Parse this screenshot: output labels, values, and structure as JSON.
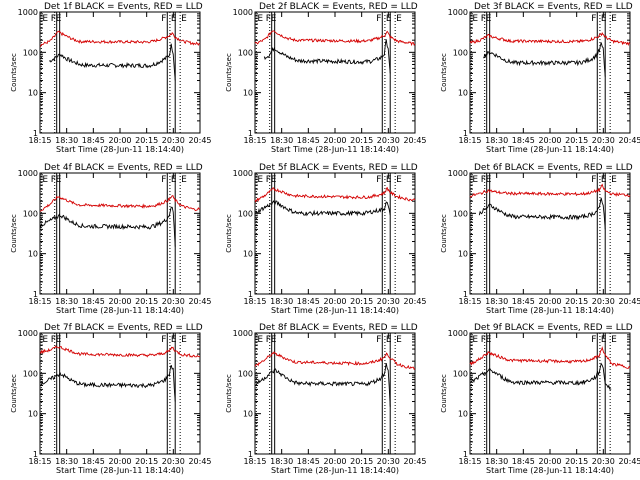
{
  "colors": {
    "events": "#000000",
    "lld": "#d40000",
    "axis": "#000000",
    "background": "#ffffff"
  },
  "chart_data": {
    "type": "line",
    "y_scale": "log",
    "ylim": [
      1,
      1000
    ],
    "y_ticks": [
      1,
      10,
      100,
      1000
    ],
    "y_tick_labels": [
      "1",
      "10",
      "100",
      "1000"
    ],
    "ylabel": "Counts/sec",
    "xlabel": "Start Time (28-Jun-11 18:14:40)",
    "x_range": [
      "18:14:40",
      "20:56:00"
    ],
    "x_tick_labels": [
      "18:15",
      "18:30",
      "18:45",
      "20:00",
      "20:15",
      "20:30",
      "20:45"
    ],
    "markers": {
      "dotted": [
        {
          "time": "18:16:00",
          "label": "E"
        },
        {
          "time": "18:29:30",
          "label": "E"
        },
        {
          "time": "20:25:40",
          "label": "E"
        },
        {
          "time": "20:36:00",
          "label": "E"
        }
      ],
      "solid": [
        {
          "time": "18:31:30",
          "label": "F"
        },
        {
          "time": "18:34:30",
          "label": ""
        },
        {
          "time": "20:23:00",
          "label": "F"
        },
        {
          "time": "20:31:00",
          "label": ""
        }
      ]
    },
    "panels": [
      {
        "title": "Det 1f BLACK = Events, RED = LLD",
        "series": [
          {
            "name": "Events",
            "x": [
              "18:24",
              "18:29",
              "18:35",
              "18:41",
              "18:47",
              "18:53",
              "18:59",
              "20:05",
              "20:11",
              "20:17",
              "20:21",
              "20:25",
              "20:27",
              "20:29",
              "20:31"
            ],
            "y": [
              60,
              70,
              90,
              70,
              60,
              52,
              48,
              47,
              52,
              62,
              70,
              85,
              150,
              100,
              20
            ]
          },
          {
            "name": "LLD",
            "x": [
              "18:14:40",
              "18:25",
              "18:33",
              "18:40",
              "18:48",
              "18:55",
              "20:02",
              "20:10",
              "20:18",
              "20:22",
              "20:25",
              "20:28",
              "20:31",
              "20:38",
              "20:50",
              "20:56"
            ],
            "y": [
              150,
              190,
              320,
              260,
              210,
              185,
              180,
              190,
              220,
              240,
              260,
              300,
              240,
              190,
              165,
              160
            ]
          }
        ]
      },
      {
        "title": "Det 2f BLACK = Events, RED = LLD",
        "series": [
          {
            "name": "Events",
            "x": [
              "18:24",
              "18:29",
              "18:34",
              "18:40",
              "18:46",
              "18:52",
              "18:58",
              "20:05",
              "20:11",
              "20:17",
              "20:21",
              "20:25",
              "20:27",
              "20:29",
              "20:31"
            ],
            "y": [
              75,
              85,
              130,
              100,
              80,
              70,
              62,
              58,
              60,
              66,
              72,
              90,
              190,
              130,
              30
            ]
          },
          {
            "name": "LLD",
            "x": [
              "18:14:40",
              "18:25",
              "18:33",
              "18:40",
              "18:48",
              "18:55",
              "20:02",
              "20:10",
              "20:18",
              "20:22",
              "20:25",
              "20:28",
              "20:31",
              "20:38",
              "20:50",
              "20:56"
            ],
            "y": [
              160,
              210,
              360,
              270,
              220,
              200,
              190,
              195,
              220,
              240,
              260,
              320,
              240,
              190,
              170,
              160
            ]
          }
        ]
      },
      {
        "title": "Det 3f BLACK = Events, RED = LLD",
        "series": [
          {
            "name": "Events",
            "x": [
              "18:28",
              "18:31",
              "18:35",
              "18:41",
              "18:47",
              "18:53",
              "18:59",
              "20:05",
              "20:11",
              "20:17",
              "20:21",
              "20:25",
              "20:27",
              "20:29",
              "20:31"
            ],
            "y": [
              80,
              90,
              100,
              85,
              70,
              60,
              55,
              55,
              60,
              68,
              80,
              110,
              160,
              120,
              25
            ]
          },
          {
            "name": "LLD",
            "x": [
              "18:14:40",
              "18:25",
              "18:33",
              "18:40",
              "18:48",
              "18:55",
              "20:02",
              "20:10",
              "20:18",
              "20:22",
              "20:25",
              "20:28",
              "20:31",
              "20:38",
              "20:50",
              "20:56"
            ],
            "y": [
              170,
              200,
              260,
              230,
              210,
              190,
              185,
              190,
              215,
              235,
              255,
              300,
              240,
              190,
              170,
              165
            ]
          }
        ]
      },
      {
        "title": "Det 4f BLACK = Events, RED = LLD",
        "series": [
          {
            "name": "Events",
            "x": [
              "18:14:40",
              "18:22",
              "18:29",
              "18:35",
              "18:41",
              "18:47",
              "18:53",
              "18:59",
              "20:05",
              "20:11",
              "20:17",
              "20:21",
              "20:25",
              "20:27",
              "20:29",
              "20:31"
            ],
            "y": [
              50,
              60,
              75,
              90,
              75,
              60,
              52,
              48,
              46,
              50,
              58,
              66,
              90,
              150,
              110,
              15
            ]
          },
          {
            "name": "LLD",
            "x": [
              "18:14:40",
              "18:25",
              "18:33",
              "18:40",
              "18:48",
              "18:55",
              "20:02",
              "20:10",
              "20:18",
              "20:22",
              "20:25",
              "20:28",
              "20:31",
              "20:38",
              "20:50",
              "20:56"
            ],
            "y": [
              115,
              170,
              260,
              220,
              180,
              160,
              150,
              155,
              180,
              200,
              220,
              270,
              210,
              150,
              125,
              130
            ]
          }
        ]
      },
      {
        "title": "Det 5f BLACK = Events, RED = LLD",
        "series": [
          {
            "name": "Events",
            "x": [
              "18:14:40",
              "18:22",
              "18:29",
              "18:35",
              "18:41",
              "18:47",
              "18:53",
              "18:59",
              "20:05",
              "20:11",
              "20:17",
              "20:21",
              "20:25",
              "20:27",
              "20:29",
              "20:31"
            ],
            "y": [
              100,
              130,
              160,
              190,
              160,
              130,
              110,
              100,
              100,
              108,
              115,
              120,
              130,
              200,
              150,
              90
            ]
          },
          {
            "name": "LLD",
            "x": [
              "18:14:40",
              "18:25",
              "18:33",
              "18:40",
              "18:48",
              "18:55",
              "20:02",
              "20:10",
              "20:18",
              "20:22",
              "20:25",
              "20:28",
              "20:31",
              "20:38",
              "20:50",
              "20:56"
            ],
            "y": [
              200,
              280,
              400,
              360,
              300,
              270,
              250,
              255,
              280,
              300,
              320,
              420,
              330,
              260,
              220,
              215
            ]
          }
        ]
      },
      {
        "title": "Det 6f BLACK = Events, RED = LLD",
        "series": [
          {
            "name": "Events",
            "x": [
              "18:24",
              "18:29",
              "18:35",
              "18:41",
              "18:47",
              "18:53",
              "18:59",
              "20:05",
              "20:11",
              "20:17",
              "20:21",
              "20:25",
              "20:27",
              "20:29",
              "20:31"
            ],
            "y": [
              100,
              120,
              160,
              130,
              105,
              90,
              82,
              80,
              85,
              95,
              105,
              130,
              240,
              170,
              40
            ]
          },
          {
            "name": "LLD",
            "x": [
              "18:14:40",
              "18:25",
              "18:33",
              "18:40",
              "18:48",
              "18:55",
              "20:02",
              "20:10",
              "20:18",
              "20:22",
              "20:25",
              "20:28",
              "20:31",
              "20:38",
              "20:50",
              "20:56"
            ],
            "y": [
              270,
              310,
              370,
              340,
              320,
              310,
              300,
              305,
              330,
              360,
              380,
              480,
              360,
              300,
              290,
              280
            ]
          }
        ]
      },
      {
        "title": "Det 7f BLACK = Events, RED = LLD",
        "series": [
          {
            "name": "Events",
            "x": [
              "18:16",
              "18:22",
              "18:29",
              "18:35",
              "18:41",
              "18:47",
              "18:53",
              "18:59",
              "20:05",
              "20:11",
              "20:17",
              "20:21",
              "20:25",
              "20:27",
              "20:29",
              "20:31"
            ],
            "y": [
              55,
              65,
              80,
              100,
              80,
              65,
              56,
              52,
              50,
              54,
              62,
              70,
              95,
              160,
              120,
              20
            ]
          },
          {
            "name": "LLD",
            "x": [
              "18:14:40",
              "18:25",
              "18:33",
              "18:40",
              "18:48",
              "18:55",
              "20:02",
              "20:10",
              "20:18",
              "20:22",
              "20:25",
              "20:28",
              "20:31",
              "20:38",
              "20:50",
              "20:56"
            ],
            "y": [
              330,
              380,
              460,
              400,
              340,
              300,
              280,
              285,
              310,
              330,
              360,
              450,
              360,
              290,
              270,
              260
            ]
          }
        ]
      },
      {
        "title": "Det 8f BLACK = Events, RED = LLD",
        "series": [
          {
            "name": "Events",
            "x": [
              "18:16",
              "18:22",
              "18:29",
              "18:35",
              "18:41",
              "18:47",
              "18:53",
              "18:59",
              "20:05",
              "20:11",
              "20:17",
              "20:21",
              "20:25",
              "20:27",
              "20:29",
              "20:31"
            ],
            "y": [
              55,
              70,
              95,
              120,
              95,
              75,
              62,
              56,
              54,
              58,
              66,
              75,
              100,
              170,
              125,
              15
            ]
          },
          {
            "name": "LLD",
            "x": [
              "18:14:40",
              "18:25",
              "18:33",
              "18:40",
              "18:48",
              "18:55",
              "20:02",
              "20:10",
              "20:18",
              "20:22",
              "20:25",
              "20:28",
              "20:31",
              "20:38",
              "20:50",
              "20:56"
            ],
            "y": [
              150,
              220,
              320,
              270,
              220,
              190,
              175,
              180,
              205,
              225,
              250,
              310,
              240,
              170,
              140,
              130
            ]
          }
        ]
      },
      {
        "title": "Det 9f BLACK = Events, RED = LLD",
        "series": [
          {
            "name": "Events",
            "x": [
              "18:16",
              "18:22",
              "18:29",
              "18:35",
              "18:41",
              "18:47",
              "18:53",
              "18:59",
              "20:05",
              "20:11",
              "20:17",
              "20:21",
              "20:25",
              "20:27",
              "20:29",
              "20:31",
              "20:33",
              "20:37"
            ],
            "y": [
              60,
              75,
              100,
              120,
              100,
              80,
              66,
              60,
              58,
              62,
              70,
              80,
              110,
              180,
              130,
              60,
              50,
              40
            ]
          },
          {
            "name": "LLD",
            "x": [
              "18:14:40",
              "18:25",
              "18:33",
              "18:40",
              "18:48",
              "18:55",
              "20:02",
              "20:10",
              "20:18",
              "20:22",
              "20:25",
              "20:28",
              "20:31",
              "20:38",
              "20:50",
              "20:56"
            ],
            "y": [
              170,
              230,
              330,
              280,
              240,
              210,
              195,
              200,
              230,
              250,
              280,
              420,
              280,
              170,
              150,
              140
            ]
          }
        ]
      }
    ]
  }
}
